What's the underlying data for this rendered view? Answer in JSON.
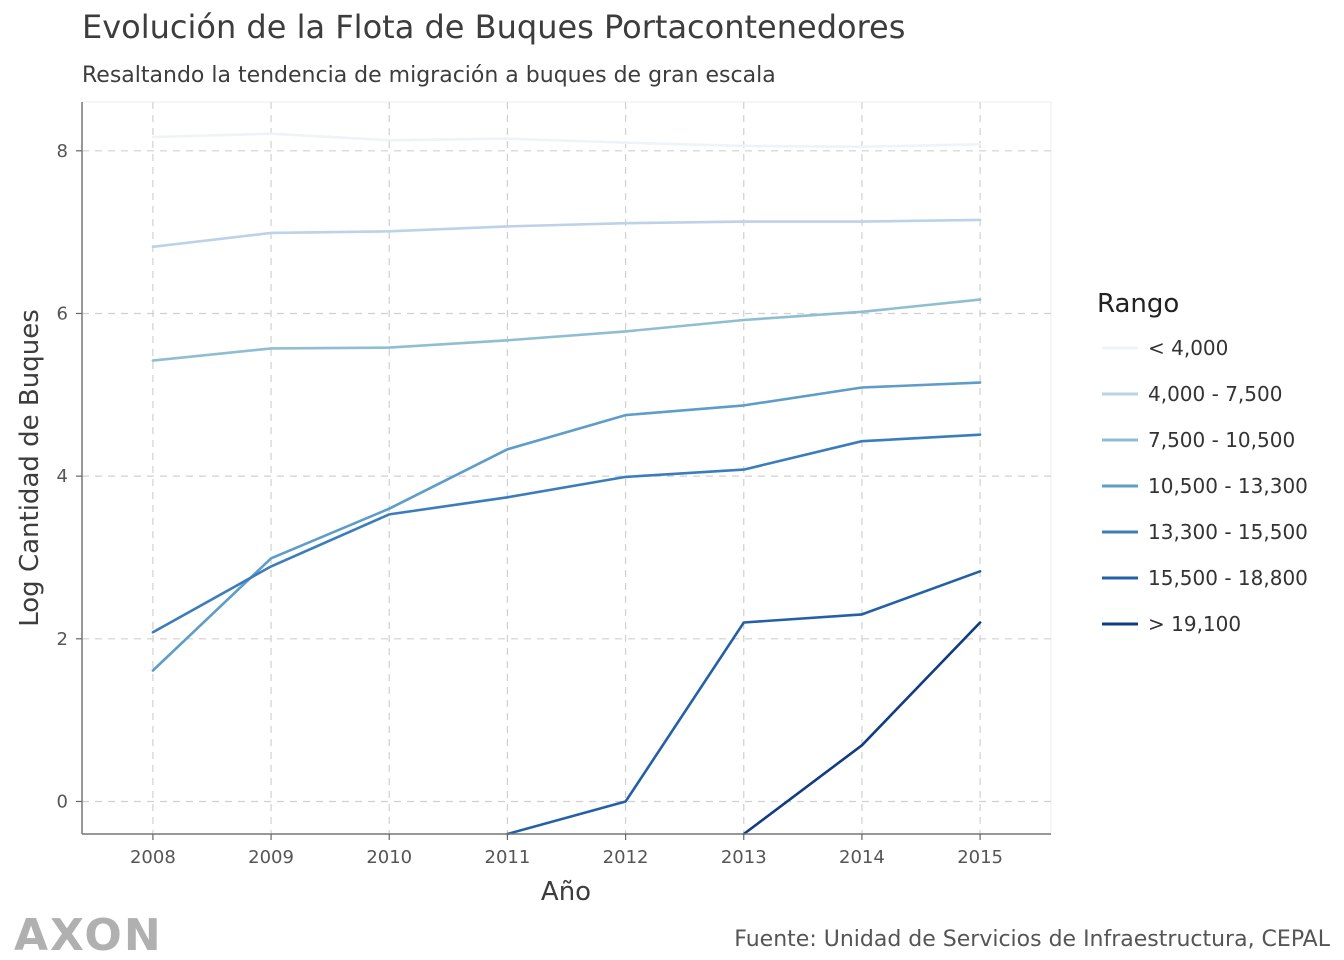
{
  "chart_data": {
    "type": "line",
    "title": "Evolución de la Flota de Buques Portacontenedores",
    "subtitle": "Resaltando la tendencia de migración a buques de gran escala",
    "xlabel": "Año",
    "ylabel": "Log Cantidad de Buques",
    "caption": "Fuente: Unidad de Servicios de Infraestructura, CEPAL",
    "logo": "AXON",
    "x": [
      2008,
      2009,
      2010,
      2011,
      2012,
      2013,
      2014,
      2015
    ],
    "xlim": [
      2007.4,
      2015.6
    ],
    "ylim": [
      -0.4,
      8.6
    ],
    "yticks": [
      0,
      2,
      4,
      6,
      8
    ],
    "grid": true,
    "legend_title": "Rango",
    "legend_position": "right",
    "series": [
      {
        "name": "< 4,000",
        "color": "#eef3fa",
        "values": [
          8.17,
          8.21,
          8.13,
          8.15,
          8.1,
          8.06,
          8.05,
          8.08
        ]
      },
      {
        "name": "4,000 - 7,500",
        "color": "#bcd2e7",
        "values": [
          6.82,
          6.99,
          7.01,
          7.07,
          7.11,
          7.13,
          7.13,
          7.15
        ]
      },
      {
        "name": "7,500 - 10,500",
        "color": "#8fbed3",
        "values": [
          5.42,
          5.57,
          5.58,
          5.67,
          5.78,
          5.92,
          6.02,
          6.17
        ]
      },
      {
        "name": "10,500 - 13,300",
        "color": "#5e9dc8",
        "values": [
          1.61,
          2.99,
          3.6,
          4.33,
          4.75,
          4.87,
          5.09,
          5.15
        ]
      },
      {
        "name": "13,300 - 15,500",
        "color": "#3b7dbb",
        "values": [
          2.08,
          2.89,
          3.53,
          3.74,
          3.99,
          4.08,
          4.43,
          4.51
        ]
      },
      {
        "name": "15,500 - 18,800",
        "color": "#2460a5",
        "values": [
          null,
          null,
          null,
          -0.4,
          0,
          2.2,
          2.3,
          2.83
        ]
      },
      {
        "name": "> 19,100",
        "color": "#113c82",
        "values": [
          null,
          null,
          null,
          null,
          null,
          -0.4,
          0.69,
          2.2
        ]
      }
    ]
  }
}
